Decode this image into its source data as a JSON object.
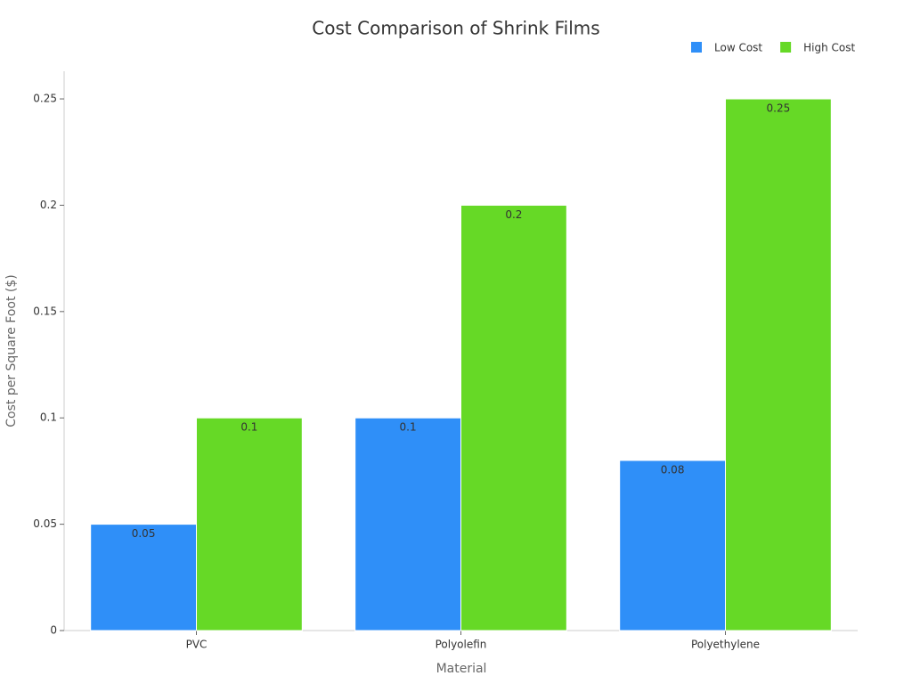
{
  "chart_data": {
    "type": "bar",
    "title": "Cost Comparison of Shrink Films",
    "x_label": "Material",
    "y_label": "Cost per Square Foot ($)",
    "categories": [
      "PVC",
      "Polyolefin",
      "Polyethylene"
    ],
    "series": [
      {
        "name": "Low Cost",
        "color": "#2f8ff8",
        "values": [
          0.05,
          0.1,
          0.08
        ]
      },
      {
        "name": "High Cost",
        "color": "#66d926",
        "values": [
          0.1,
          0.2,
          0.25
        ]
      }
    ],
    "ylim": [
      0,
      0.263
    ],
    "yticks": [
      0,
      0.05,
      0.1,
      0.15,
      0.2,
      0.25
    ],
    "grid": false,
    "legend": "top-right"
  }
}
